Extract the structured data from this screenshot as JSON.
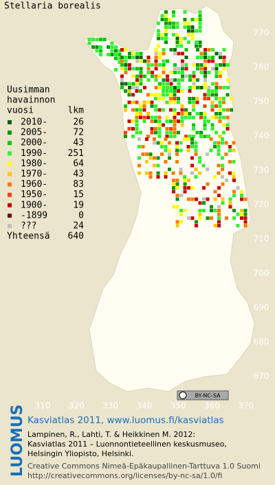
{
  "title": "Stellaria borealis",
  "legend": {
    "heading": [
      "Uusimman",
      "havainnon"
    ],
    "col_year": "vuosi",
    "col_count": "lkm",
    "items": [
      {
        "label": "2010-",
        "count": 26,
        "color": "#006400"
      },
      {
        "label": "2005-",
        "count": 72,
        "color": "#009600"
      },
      {
        "label": "2000-",
        "count": 43,
        "color": "#00c800"
      },
      {
        "label": "1990-",
        "count": 251,
        "color": "#32f032"
      },
      {
        "label": "1980-",
        "count": 64,
        "color": "#ffff00"
      },
      {
        "label": "1970-",
        "count": 43,
        "color": "#ffc800"
      },
      {
        "label": "1960-",
        "count": 83,
        "color": "#ff7800"
      },
      {
        "label": "1950-",
        "count": 15,
        "color": "#ff3c00"
      },
      {
        "label": "1900-",
        "count": 19,
        "color": "#c80000"
      },
      {
        "label": "-1899",
        "count": 0,
        "color": "#780000"
      },
      {
        "label": "???",
        "count": 24,
        "color": "#c0c0c0"
      }
    ],
    "total_label": "Yhteensä",
    "total": 640
  },
  "grid_north": [
    770,
    760,
    750,
    740,
    730,
    720,
    710,
    700,
    690,
    680,
    670
  ],
  "grid_east": [
    310,
    320,
    330,
    340,
    350,
    360,
    370
  ],
  "cc_badge": "BY-NC-SA",
  "footer": {
    "logo": "LUOMUS",
    "heading": "Kasviatlas 2011, www.luomus.fi/kasviatlas",
    "citation": [
      "Lampinen, R., Lahti, T. & Heikkinen M. 2012:",
      "Kasviatlas 2011 – Luonnontieteellinen keskusmuseo,",
      "Helsingin Yliopisto, Helsinki."
    ],
    "license": [
      "Creative Commons Nimeä-Epäkaupallinen-Tarttuva 1.0 Suomi",
      "http://creativecommons.org/licenses/by-nc-sa/1.0/fi"
    ]
  }
}
